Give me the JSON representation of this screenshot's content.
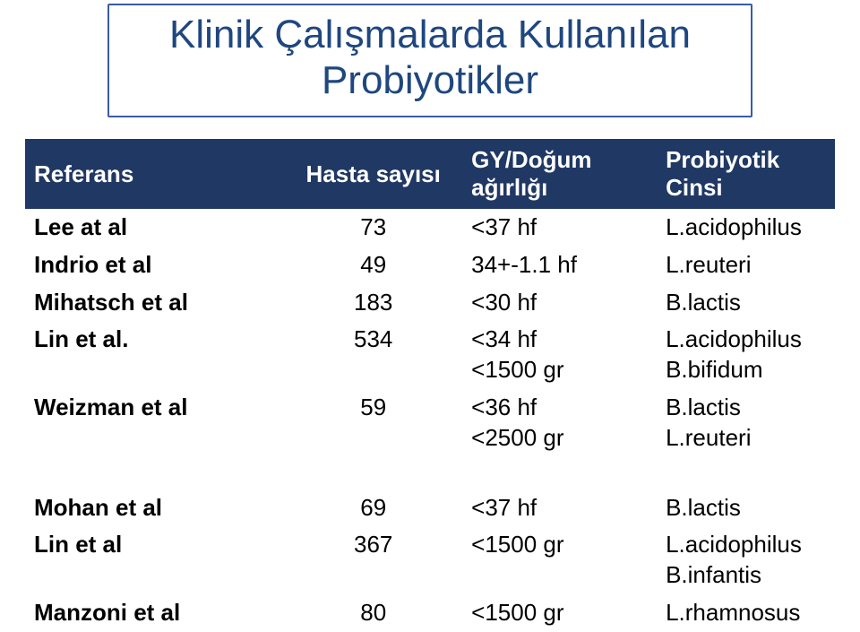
{
  "title": {
    "line1": "Klinik Çalışmalarda Kullanılan",
    "line2": "Probiyotikler",
    "text_color": "#1f477f",
    "border_color": "#3a5aa8",
    "font_size_pt": 33
  },
  "table": {
    "header_bg": "#203864",
    "header_fg": "#ffffff",
    "body_fg": "#000000",
    "font_size_pt": 20,
    "columns": [
      "Referans",
      "Hasta sayısı",
      "GY/Doğum ağırlığı",
      "Probiyotik Cinsi"
    ],
    "groups": [
      {
        "rows": [
          {
            "ref": "Lee at al",
            "n": "73",
            "gw": [
              "<37 hf"
            ],
            "prob": [
              "L.acidophilus"
            ]
          },
          {
            "ref": "Indrio et al",
            "n": "49",
            "gw": [
              "34+-1.1 hf"
            ],
            "prob": [
              "L.reuteri"
            ]
          },
          {
            "ref": "Mihatsch et al",
            "n": "183",
            "gw": [
              "<30 hf"
            ],
            "prob": [
              "B.lactis"
            ]
          },
          {
            "ref": "Lin et al.",
            "n": "534",
            "gw": [
              "<34 hf",
              "<1500 gr"
            ],
            "prob": [
              "L.acidophilus",
              "B.bifidum"
            ]
          },
          {
            "ref": "Weizman et al",
            "n": "59",
            "gw": [
              "<36 hf",
              "<2500 gr"
            ],
            "prob": [
              "B.lactis",
              "L.reuteri"
            ]
          }
        ]
      },
      {
        "rows": [
          {
            "ref": "Mohan et al",
            "n": "69",
            "gw": [
              "<37 hf"
            ],
            "prob": [
              "B.lactis"
            ]
          },
          {
            "ref": "Lin et al",
            "n": "367",
            "gw": [
              "<1500 gr"
            ],
            "prob": [
              "L.acidophilus",
              "B.infantis"
            ]
          },
          {
            "ref": "Manzoni et al",
            "n": "80",
            "gw": [
              "<1500 gr"
            ],
            "prob": [
              "L.rhamnosus"
            ]
          }
        ]
      }
    ]
  }
}
